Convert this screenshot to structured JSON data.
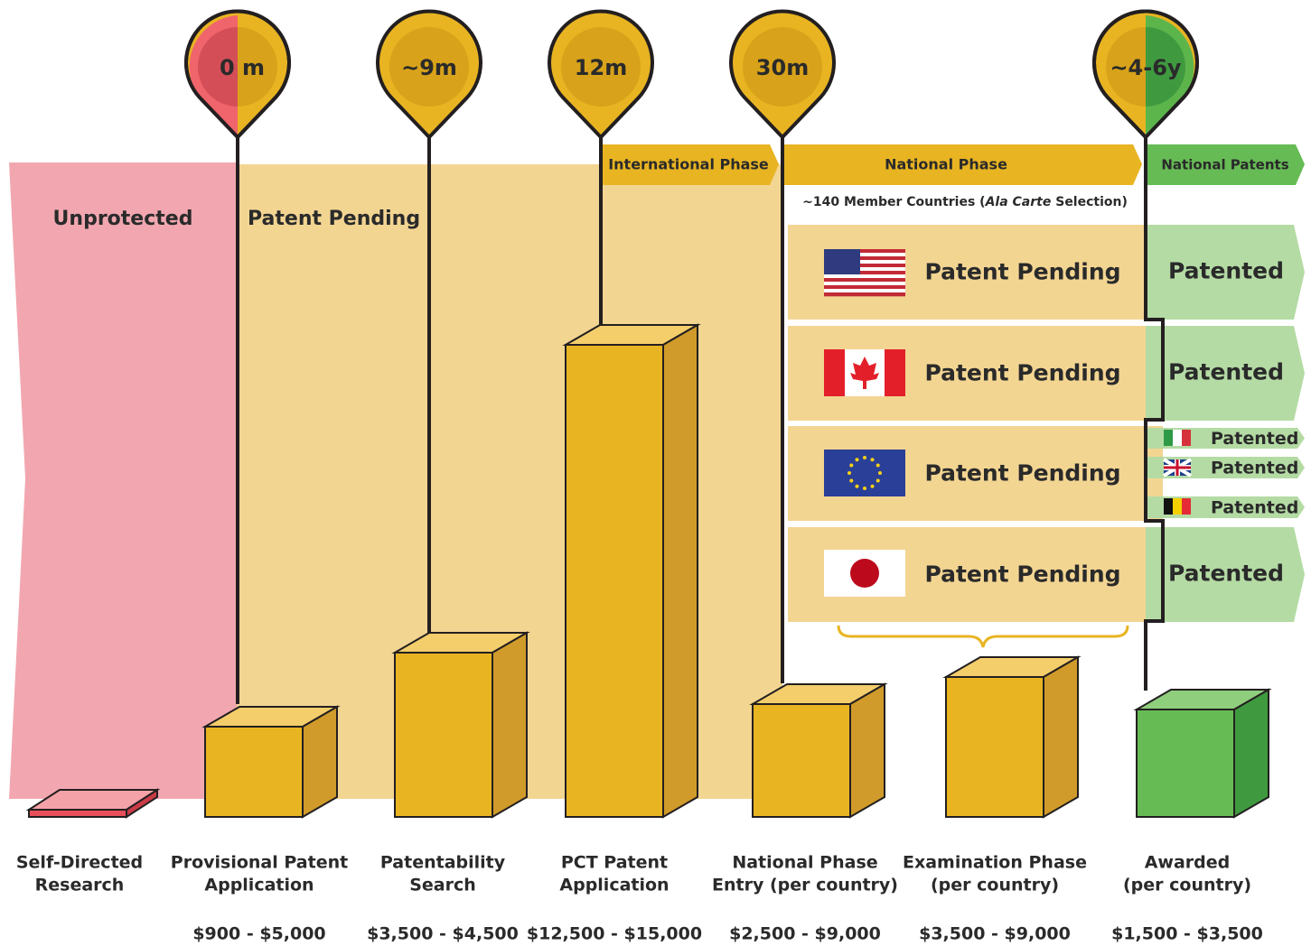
{
  "pins": [
    "0 m",
    "~9m",
    "12m",
    "30m",
    "~4-6y"
  ],
  "regions": {
    "unprotected": "Unprotected",
    "pending": "Patent Pending"
  },
  "phases": [
    "International Phase",
    "National Phase",
    "National Patents"
  ],
  "member_note": [
    "~140 Member Countries (",
    "Ala Carte",
    " Selection)"
  ],
  "countries": [
    {
      "pending": "Patent Pending",
      "patented": [
        "Patented"
      ]
    },
    {
      "pending": "Patent Pending",
      "patented": [
        "Patented"
      ]
    },
    {
      "pending": "Patent Pending",
      "patented": [
        "Patented",
        "Patented",
        "Patented"
      ]
    },
    {
      "pending": "Patent Pending",
      "patented": [
        "Patented"
      ]
    }
  ],
  "steps": [
    {
      "name": [
        "Self-Directed",
        "Research"
      ]
    },
    {
      "name": [
        "Provisional Patent",
        "Application"
      ],
      "cost": "$900 - $5,000"
    },
    {
      "name": [
        "Patentability",
        "Search"
      ],
      "cost": "$3,500 - $4,500"
    },
    {
      "name": [
        "PCT Patent",
        "Application"
      ],
      "cost": "$12,500 - $15,000"
    },
    {
      "name": [
        "National Phase",
        "Entry (per country)"
      ],
      "cost": "$2,500 - $9,000"
    },
    {
      "name": [
        "Examination Phase",
        "(per country)"
      ],
      "cost": "$3,500 - $9,000"
    },
    {
      "name": [
        "Awarded",
        "(per country)"
      ],
      "cost": "$1,500 - $3,500"
    }
  ]
}
